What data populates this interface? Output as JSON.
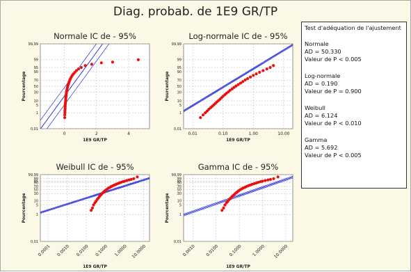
{
  "title": "Diag. probab. de 1E9 GR/TP",
  "percent_ticks": [
    0.01,
    1,
    5,
    10,
    30,
    50,
    70,
    90,
    95,
    99,
    99.99
  ],
  "percent_tick_labels": [
    "0,01",
    "1",
    "5",
    "10",
    "30",
    "50",
    "70",
    "90",
    "95",
    "99",
    "99,99"
  ],
  "chart_data": [
    {
      "type": "scatter",
      "title": "Normale IC de - 95%",
      "xlabel": "1E9 GR/TP",
      "ylabel": "Pourcentage",
      "x_scale": "linear",
      "x_ticks": [
        0,
        2,
        4
      ],
      "x_tick_labels": [
        "0",
        "2",
        "4"
      ],
      "xlim": [
        -1.5,
        5.3
      ],
      "series": [
        {
          "values_x": [
            0.02,
            0.02,
            0.03,
            0.03,
            0.04,
            0.04,
            0.05,
            0.05,
            0.06,
            0.07,
            0.08,
            0.08,
            0.09,
            0.1,
            0.11,
            0.12,
            0.13,
            0.15,
            0.17,
            0.19,
            0.21,
            0.24,
            0.27,
            0.3,
            0.34,
            0.38,
            0.43,
            0.49,
            0.56,
            0.65,
            0.75,
            0.88,
            1.05,
            1.3,
            1.7,
            2.3,
            3.0,
            4.6
          ],
          "values_y": [
            0.3,
            0.6,
            1.0,
            1.5,
            2.2,
            3.0,
            4.0,
            5.2,
            6.7,
            8.5,
            10.5,
            13,
            16,
            19,
            23,
            27,
            31,
            36,
            41,
            46,
            51,
            56,
            61,
            66,
            71,
            75,
            79,
            83,
            86,
            89,
            91.5,
            93.5,
            95,
            96.5,
            97.3,
            98,
            98.3,
            99
          ]
        }
      ],
      "fit_line": {
        "mean": 0.45,
        "sd": 0.52
      },
      "ci_spread": 0.18
    },
    {
      "type": "scatter",
      "title": "Log-normale IC de - 95%",
      "xlabel": "1E9 GR/TP",
      "ylabel": "Pourcentage",
      "x_scale": "log",
      "x_ticks": [
        0.01,
        0.1,
        1,
        10
      ],
      "x_tick_labels": [
        "0.01",
        "0.10",
        "1.00",
        "10.00"
      ],
      "xlim": [
        0.005,
        20
      ],
      "series": [
        {
          "values_x": [
            0.018,
            0.022,
            0.026,
            0.03,
            0.034,
            0.039,
            0.044,
            0.05,
            0.056,
            0.063,
            0.071,
            0.08,
            0.09,
            0.1,
            0.115,
            0.13,
            0.15,
            0.17,
            0.2,
            0.23,
            0.27,
            0.32,
            0.38,
            0.45,
            0.54,
            0.65,
            0.8,
            1.0,
            1.25,
            1.6,
            2.1,
            2.8,
            3.6,
            4.6
          ],
          "values_y": [
            0.3,
            0.6,
            1.0,
            1.5,
            2.2,
            3.0,
            4.0,
            5.2,
            6.7,
            8.5,
            10.5,
            13,
            16,
            19,
            23,
            27,
            31,
            36,
            41,
            46,
            51,
            56,
            61,
            66,
            71,
            75,
            79,
            83,
            86,
            89,
            91.5,
            93.5,
            95,
            96.5
          ]
        }
      ],
      "fit_line": {
        "mean_log": -0.95,
        "sd_log": 0.62
      },
      "ci_spread": 0.045
    },
    {
      "type": "scatter",
      "title": "Weibull IC de - 95%",
      "xlabel": "1E9 GR/TP",
      "ylabel": "Pourcentage",
      "x_scale": "log",
      "x_ticks": [
        0.0001,
        0.001,
        0.01,
        0.1,
        1,
        10
      ],
      "x_tick_labels": [
        "0.0001",
        "0.0010",
        "0.0100",
        "0.1000",
        "1.0000",
        "10.0000"
      ],
      "xlim": [
        4e-05,
        20
      ],
      "series": [
        {
          "values_x": [
            0.018,
            0.021,
            0.024,
            0.028,
            0.032,
            0.037,
            0.042,
            0.048,
            0.055,
            0.063,
            0.072,
            0.082,
            0.094,
            0.11,
            0.13,
            0.15,
            0.18,
            0.21,
            0.25,
            0.3,
            0.36,
            0.44,
            0.54,
            0.66,
            0.82,
            1.0,
            1.3,
            1.7,
            2.2,
            3.0,
            4.6
          ],
          "values_y": [
            2,
            3,
            5,
            7,
            9,
            12,
            15,
            19,
            23,
            28,
            33,
            38,
            44,
            50,
            56,
            61,
            66,
            71,
            75,
            79,
            83,
            86,
            89,
            91.5,
            93.5,
            95,
            96.5,
            97.5,
            98.3,
            99,
            99.8
          ]
        }
      ],
      "fit_line": {
        "scale": 0.55,
        "shape": 0.45
      },
      "ci_spread": 0.12
    },
    {
      "type": "scatter",
      "title": "Gamma IC de - 95%",
      "xlabel": "1E9 GR/TP",
      "ylabel": "Pourcentage",
      "x_scale": "log",
      "x_ticks": [
        0.001,
        0.01,
        0.1,
        1,
        10
      ],
      "x_tick_labels": [
        "0.0010",
        "0.0100",
        "0.1000",
        "1.0000",
        "10.0000"
      ],
      "xlim": [
        0.0004,
        20
      ],
      "series": [
        {
          "values_x": [
            0.018,
            0.021,
            0.024,
            0.028,
            0.032,
            0.037,
            0.042,
            0.048,
            0.055,
            0.063,
            0.072,
            0.082,
            0.094,
            0.11,
            0.13,
            0.15,
            0.18,
            0.21,
            0.25,
            0.3,
            0.36,
            0.44,
            0.54,
            0.66,
            0.82,
            1.0,
            1.3,
            1.7,
            2.2,
            3.0,
            4.6
          ],
          "values_y": [
            2,
            3,
            5,
            7,
            9,
            12,
            15,
            19,
            23,
            28,
            33,
            38,
            44,
            50,
            56,
            61,
            66,
            71,
            75,
            79,
            83,
            86,
            89,
            91.5,
            93.5,
            95,
            96.5,
            97.5,
            98.3,
            99,
            99.8
          ]
        }
      ],
      "fit_line": {
        "shape": 0.6,
        "scale": 1.1
      },
      "ci_spread": 0.12
    }
  ],
  "legend": {
    "title": "Test d'adéquation de l'ajustement",
    "groups": [
      {
        "name": "Normale",
        "ad": "AD = 50.330",
        "p": "Valeur de P < 0.005"
      },
      {
        "name": "Log-normale",
        "ad": "AD = 0.190",
        "p": "Valeur de P = 0.900"
      },
      {
        "name": "Weibull",
        "ad": "AD = 6.124",
        "p": "Valeur de P < 0.010"
      },
      {
        "name": "Gamma",
        "ad": "AD = 5.692",
        "p": "Valeur de P < 0.005"
      }
    ]
  },
  "colors": {
    "points": "#e8110f",
    "fit_line": "#2b34d6",
    "background": "#fbf8e6",
    "plot_bg": "#ffffff",
    "grid": "#b8b8b8",
    "text": "#222222"
  }
}
